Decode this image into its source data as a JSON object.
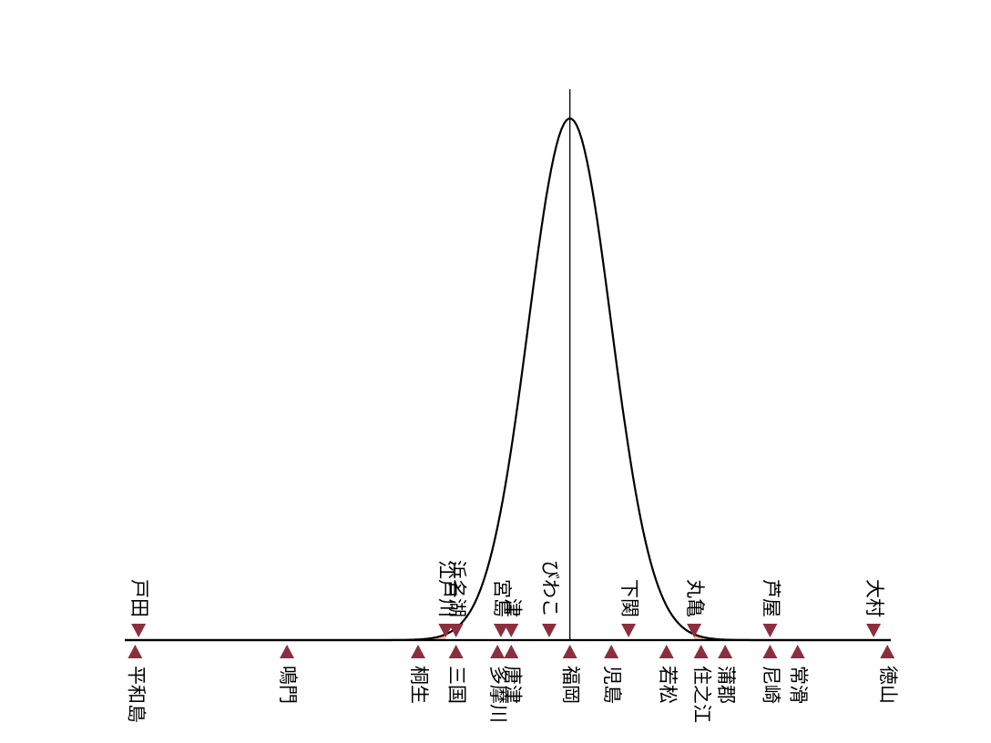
{
  "chart_data": {
    "type": "distribution",
    "xlim": [
      -12.9,
      9.3
    ],
    "curve_sd": 1.2,
    "center": 0,
    "shaded_tails": [
      -3.6,
      3.6
    ],
    "marker_color": "#8b2f3f",
    "shade_color": "#f4b8a4",
    "above": {
      "labels": [
        "戸田",
        "江戸川",
        "浜名湖",
        "宮島",
        "津",
        "びわこ",
        "下関",
        "丸亀",
        "芦屋",
        "大村"
      ],
      "x": [
        -12.5,
        -3.6,
        -3.3,
        -2.0,
        -1.7,
        -0.6,
        1.7,
        3.6,
        5.8,
        8.8
      ]
    },
    "below": {
      "labels": [
        "平和島",
        "鳴門",
        "桐生",
        "三国",
        "多摩川",
        "唐津",
        "福岡",
        "児島",
        "若松",
        "住之江",
        "蒲郡",
        "尼崎",
        "常滑",
        "徳山"
      ],
      "x": [
        -12.6,
        -8.2,
        -4.4,
        -3.3,
        -2.1,
        -1.7,
        0,
        1.2,
        2.8,
        3.8,
        4.5,
        5.8,
        6.6,
        9.2
      ]
    }
  }
}
